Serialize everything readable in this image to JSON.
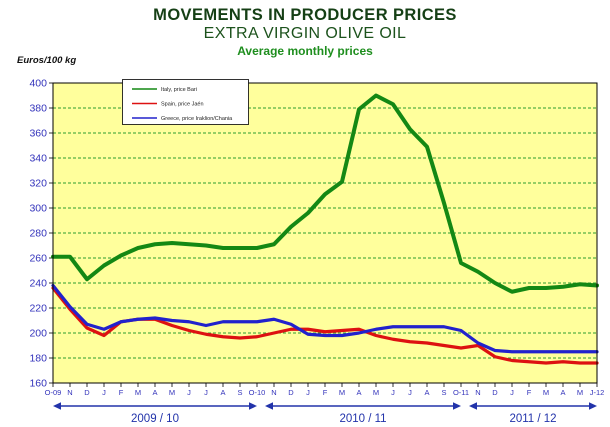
{
  "header": {
    "title": "MOVEMENTS IN PRODUCER PRICES",
    "subtitle": "EXTRA VIRGIN OLIVE OIL",
    "caption": "Average monthly prices"
  },
  "colors": {
    "plot_bg": "#FFFF9C",
    "plot_border": "#000000",
    "grid": "#2E9E2E",
    "axis_text": "#3333BB",
    "arrow": "#2233AA",
    "legend_text": "#222222",
    "series_italy": "#148814",
    "series_spain": "#DD1111",
    "series_greece": "#2222CC"
  },
  "chart_data": {
    "type": "line",
    "title": "MOVEMENTS IN PRODUCER PRICES",
    "subtitle": "EXTRA VIRGIN OLIVE OIL",
    "caption": "Average monthly prices",
    "ylabel": "Euros/100 kg",
    "ylim": [
      160,
      400
    ],
    "yticks": [
      160,
      180,
      200,
      220,
      240,
      260,
      280,
      300,
      320,
      340,
      360,
      380,
      400
    ],
    "grid": "horizontal-dashed",
    "legend_position": "top-left-inside",
    "categories": [
      "O-09",
      "N",
      "D",
      "J",
      "F",
      "M",
      "A",
      "M",
      "J",
      "J",
      "A",
      "S",
      "O-10",
      "N",
      "D",
      "J",
      "F",
      "M",
      "A",
      "M",
      "J",
      "J",
      "A",
      "S",
      "O-11",
      "N",
      "D",
      "J",
      "F",
      "M",
      "A",
      "M",
      "J-12"
    ],
    "series": [
      {
        "name": "Italy, price Bari",
        "color": "#148814",
        "values": [
          261,
          261,
          243,
          254,
          262,
          268,
          271,
          272,
          271,
          270,
          268,
          268,
          268,
          271,
          285,
          296,
          311,
          321,
          379,
          390,
          383,
          363,
          349,
          304,
          256,
          249,
          240,
          233,
          236,
          236,
          237,
          239,
          238
        ]
      },
      {
        "name": "Spain, price Jaén",
        "color": "#DD1111",
        "values": [
          236,
          219,
          204,
          198,
          209,
          211,
          211,
          206,
          202,
          199,
          197,
          196,
          197,
          200,
          203,
          203,
          201,
          202,
          203,
          198,
          195,
          193,
          192,
          190,
          188,
          190,
          181,
          178,
          177,
          176,
          177,
          176,
          176
        ]
      },
      {
        "name": "Greece, price Iraklion/Chania",
        "color": "#2222CC",
        "values": [
          238,
          221,
          207,
          203,
          209,
          211,
          212,
          210,
          209,
          206,
          209,
          209,
          209,
          211,
          207,
          199,
          198,
          198,
          200,
          203,
          205,
          205,
          205,
          205,
          202,
          192,
          186,
          185,
          185,
          185,
          185,
          185,
          185
        ]
      }
    ],
    "season_spans": [
      {
        "label": "2009 / 10",
        "from_index": 0,
        "to_index": 12
      },
      {
        "label": "2010 / 11",
        "from_index": 12,
        "to_index": 24
      },
      {
        "label": "2011 / 12",
        "from_index": 24,
        "to_index": 32
      }
    ]
  }
}
